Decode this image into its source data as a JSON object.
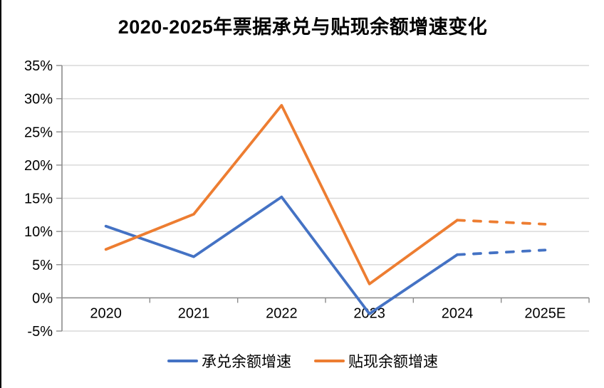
{
  "chart_data": {
    "type": "line",
    "title": "2020-2025年票据承兑与贴现余额增速变化",
    "categories": [
      "2020",
      "2021",
      "2022",
      "2023",
      "2024",
      "2025E"
    ],
    "series": [
      {
        "name": "承兑余额增速",
        "color": "#4472C4",
        "values": [
          10.8,
          6.2,
          15.2,
          -2.4,
          6.5,
          7.2
        ],
        "dashed_from_index": 4
      },
      {
        "name": "贴现余额增速",
        "color": "#ED7D31",
        "values": [
          7.3,
          12.6,
          29.0,
          2.1,
          11.7,
          11.1
        ],
        "dashed_from_index": 4
      }
    ],
    "ylim": [
      -5,
      35
    ],
    "ytick_step": 5,
    "ytick_suffix": "%",
    "grid": "horizontal",
    "legend_position": "bottom",
    "gridline_color": "#d9d9d9",
    "axis_color": "#8c8c8c",
    "text_color": "#000000"
  }
}
